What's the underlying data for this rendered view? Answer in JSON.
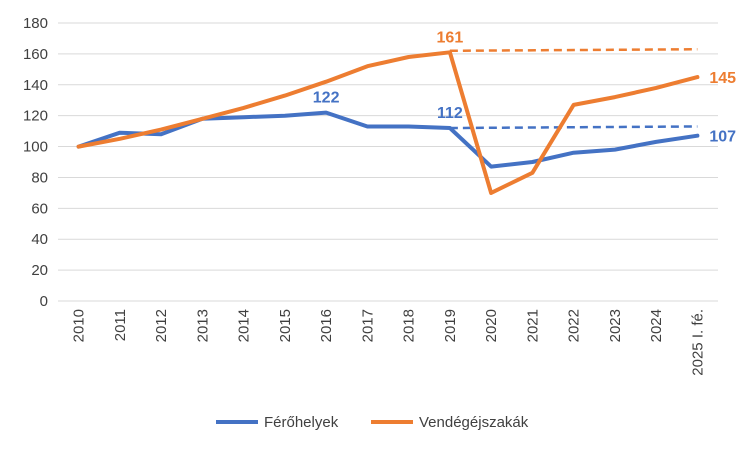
{
  "chart_data": {
    "type": "line",
    "categories": [
      "2010",
      "2011",
      "2012",
      "2013",
      "2014",
      "2015",
      "2016",
      "2017",
      "2018",
      "2019",
      "2020",
      "2021",
      "2022",
      "2023",
      "2024",
      "2025 I. fé."
    ],
    "ylim": [
      0,
      180
    ],
    "yticks": [
      0,
      20,
      40,
      60,
      80,
      100,
      120,
      140,
      160,
      180
    ],
    "grid": true,
    "legend_position": "bottom",
    "series": [
      {
        "name": "Férőhelyek",
        "color": "#4472C4",
        "values": [
          100,
          109,
          108,
          118,
          119,
          120,
          122,
          113,
          113,
          112,
          87,
          90,
          96,
          98,
          103,
          107
        ],
        "trend_from": "2019",
        "trend_to": "2025 I. fé.",
        "trend_values": [
          112,
          113
        ],
        "labels": [
          {
            "category": "2016",
            "text": "122"
          },
          {
            "category": "2019",
            "text": "112"
          },
          {
            "category": "2025 I. fé.",
            "text": "107"
          }
        ]
      },
      {
        "name": "Vendégéjszakák",
        "color": "#ED7D31",
        "values": [
          100,
          105,
          111,
          118,
          125,
          133,
          142,
          152,
          158,
          161,
          70,
          83,
          127,
          132,
          138,
          145
        ],
        "trend_from": "2019",
        "trend_to": "2025 I. fé.",
        "trend_values": [
          162,
          163
        ],
        "labels": [
          {
            "category": "2019",
            "text": "161"
          },
          {
            "category": "2025 I. fé.",
            "text": "145"
          }
        ]
      }
    ]
  }
}
